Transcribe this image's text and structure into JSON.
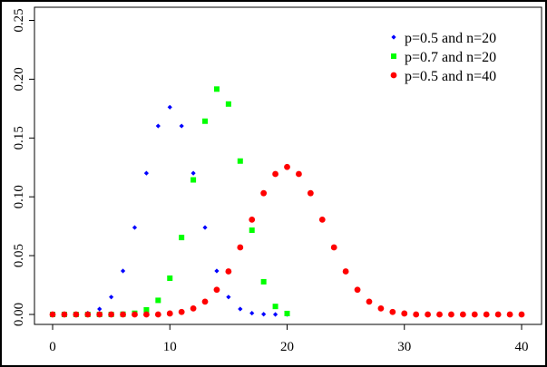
{
  "chart_data": {
    "type": "scatter",
    "x_ticks": [
      "0",
      "10",
      "20",
      "30",
      "40"
    ],
    "y_ticks": [
      "0.00",
      "0.05",
      "0.10",
      "0.15",
      "0.20",
      "0.25"
    ],
    "xlim": [
      -2,
      41.5
    ],
    "ylim": [
      -0.01,
      0.26
    ],
    "grid": false,
    "legend_position": "top-right",
    "series": [
      {
        "name": "p=0.5 and n=20",
        "color": "#0000ff",
        "marker": "diamond",
        "x": [
          0,
          1,
          2,
          3,
          4,
          5,
          6,
          7,
          8,
          9,
          10,
          11,
          12,
          13,
          14,
          15,
          16,
          17,
          18,
          19,
          20
        ],
        "y": [
          0.0,
          0.0,
          0.0002,
          0.0011,
          0.0046,
          0.0148,
          0.037,
          0.0739,
          0.1201,
          0.1602,
          0.1762,
          0.1602,
          0.1201,
          0.0739,
          0.037,
          0.0148,
          0.0046,
          0.0011,
          0.0002,
          0.0,
          0.0
        ]
      },
      {
        "name": "p=0.7 and n=20",
        "color": "#00ff00",
        "marker": "square",
        "x": [
          0,
          1,
          2,
          3,
          4,
          5,
          6,
          7,
          8,
          9,
          10,
          11,
          12,
          13,
          14,
          15,
          16,
          17,
          18,
          19,
          20
        ],
        "y": [
          0.0,
          0.0,
          0.0,
          0.0,
          0.0,
          0.0,
          0.0002,
          0.001,
          0.0039,
          0.012,
          0.0308,
          0.0654,
          0.1144,
          0.1643,
          0.1916,
          0.1789,
          0.1304,
          0.0716,
          0.0278,
          0.0068,
          0.0008
        ]
      },
      {
        "name": "p=0.5 and n=40",
        "color": "#ff0000",
        "marker": "circle",
        "x": [
          0,
          1,
          2,
          3,
          4,
          5,
          6,
          7,
          8,
          9,
          10,
          11,
          12,
          13,
          14,
          15,
          16,
          17,
          18,
          19,
          20,
          21,
          22,
          23,
          24,
          25,
          26,
          27,
          28,
          29,
          30,
          31,
          32,
          33,
          34,
          35,
          36,
          37,
          38,
          39,
          40
        ],
        "y": [
          0,
          0,
          0,
          0,
          0,
          0,
          0,
          0,
          0,
          0,
          0.0008,
          0.0021,
          0.0051,
          0.0109,
          0.021,
          0.0366,
          0.057,
          0.0806,
          0.1031,
          0.1194,
          0.1254,
          0.1194,
          0.1031,
          0.0806,
          0.057,
          0.0366,
          0.021,
          0.0109,
          0.0051,
          0.0021,
          0.0008,
          0,
          0,
          0,
          0,
          0,
          0,
          0,
          0,
          0,
          0
        ]
      }
    ]
  }
}
